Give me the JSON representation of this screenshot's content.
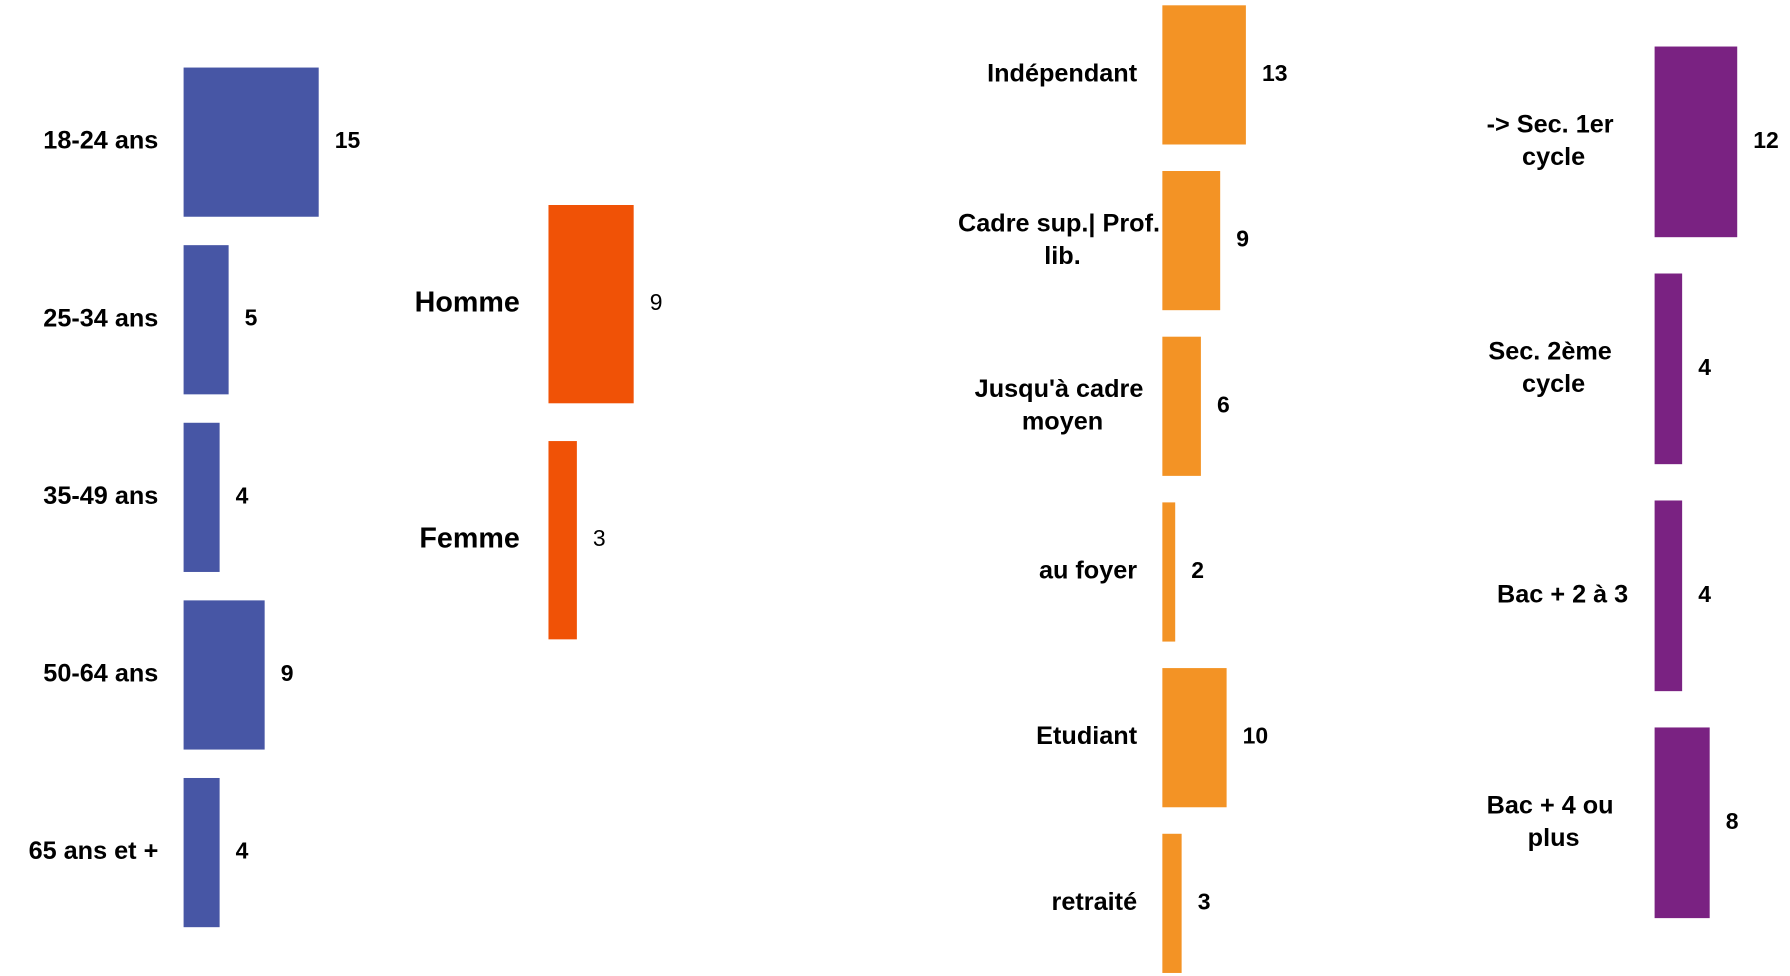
{
  "chart_data": [
    {
      "type": "bar",
      "orientation": "horizontal",
      "color": "#4756a5",
      "categories": [
        "18-24 ans",
        "25-34 ans",
        "35-49 ans",
        "50-64 ans",
        "65 ans et +"
      ],
      "values": [
        15,
        5,
        4,
        9,
        4
      ]
    },
    {
      "type": "bar",
      "orientation": "horizontal",
      "color": "#f05206",
      "categories": [
        "Homme",
        "Femme"
      ],
      "values": [
        9,
        3
      ]
    },
    {
      "type": "bar",
      "orientation": "horizontal",
      "color": "#f39325",
      "categories": [
        "Indépendant",
        "Cadre sup.| Prof. lib.",
        "Jusqu'à cadre moyen",
        "au foyer",
        "Etudiant",
        "retraité"
      ],
      "values": [
        13,
        9,
        6,
        2,
        10,
        3
      ]
    },
    {
      "type": "bar",
      "orientation": "horizontal",
      "color": "#7a2282",
      "categories": [
        "-> Sec. 1er cycle",
        "Sec. 2ème cycle",
        "Bac + 2 à 3",
        "Bac + 4 ou plus"
      ],
      "values": [
        12,
        4,
        4,
        8
      ]
    }
  ]
}
